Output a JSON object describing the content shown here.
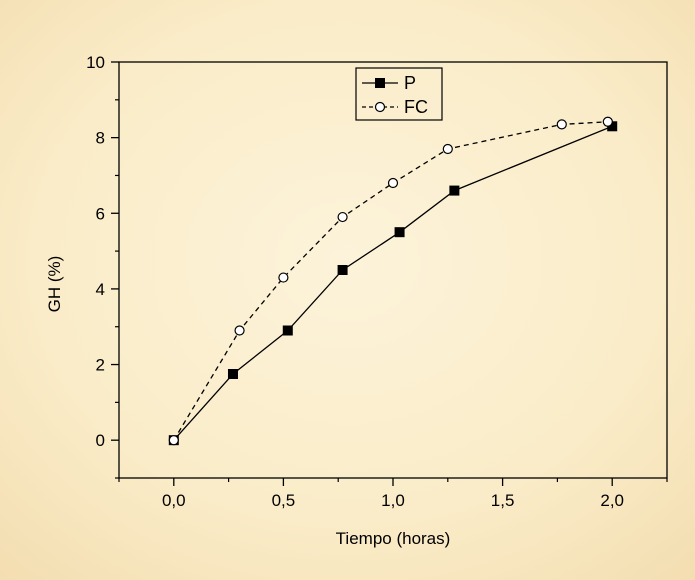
{
  "colors": {
    "background": "#fbf0d2",
    "line": "#000000",
    "marker_fill_p": "#000000",
    "marker_fill_fc": "#ffffff"
  },
  "chart_data": {
    "type": "line",
    "xlabel": "Tiempo (horas)",
    "ylabel": "GH (%)",
    "xlim": [
      -0.25,
      2.25
    ],
    "ylim": [
      -1,
      10
    ],
    "x_ticks": [
      0.0,
      0.5,
      1.0,
      1.5,
      2.0
    ],
    "x_tick_labels": [
      "0,0",
      "0,5",
      "1,0",
      "1,5",
      "2,0"
    ],
    "y_ticks": [
      0,
      2,
      4,
      6,
      8,
      10
    ],
    "y_tick_labels": [
      "0",
      "2",
      "4",
      "6",
      "8",
      "10"
    ],
    "grid": false,
    "legend_position": "top-center",
    "series": [
      {
        "name": "P",
        "line_style": "solid",
        "marker": "filled-square",
        "x": [
          0.0,
          0.27,
          0.52,
          0.77,
          1.03,
          1.28,
          2.0
        ],
        "y": [
          0.0,
          1.75,
          2.9,
          4.5,
          5.5,
          6.6,
          8.3
        ]
      },
      {
        "name": "FC",
        "line_style": "dashed",
        "marker": "open-circle",
        "x": [
          0.0,
          0.3,
          0.5,
          0.77,
          1.0,
          1.25,
          1.77,
          1.98
        ],
        "y": [
          0.0,
          2.9,
          4.3,
          5.9,
          6.8,
          7.7,
          8.35,
          8.42
        ]
      }
    ]
  }
}
